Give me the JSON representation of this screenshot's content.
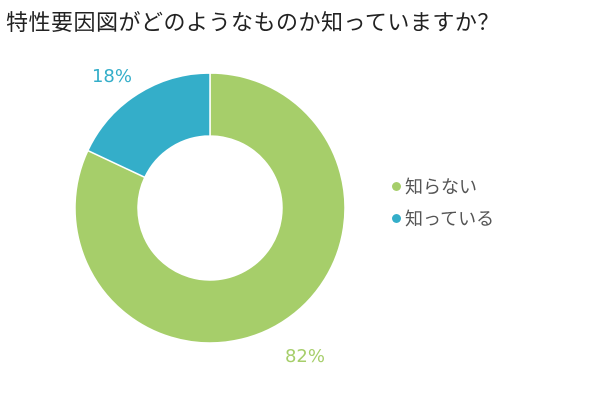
{
  "chart_data": {
    "type": "pie",
    "donut": true,
    "title": "特性要因図がどのようなものか知っていますか？",
    "categories": [
      "知らない",
      "知っている"
    ],
    "values": [
      82,
      18
    ],
    "data_labels": [
      "82%",
      "18%"
    ],
    "colors": [
      "#a6ce6a",
      "#34aec9"
    ],
    "legend_position": "right"
  }
}
